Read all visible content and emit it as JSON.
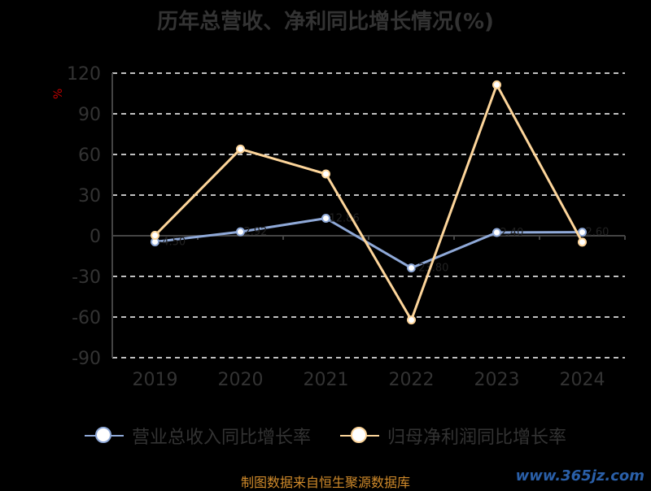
{
  "chart_data": {
    "type": "line",
    "title": "历年总营收、净利同比增长情况(%)",
    "unit_label": "%",
    "categories": [
      "2019",
      "2020",
      "2021",
      "2022",
      "2023",
      "2024"
    ],
    "ylim": [
      -90,
      120
    ],
    "yticks": [
      "120",
      "90",
      "60",
      "30",
      "0",
      "-30",
      "-60",
      "-90"
    ],
    "grid": true,
    "legend_position": "bottom",
    "series": [
      {
        "name": "营业总收入同比增长率",
        "color": "#8fa9d8",
        "values": [
          -4.5,
          2.9,
          12.9,
          -23.8,
          2.4,
          2.6
        ],
        "labels": [
          "-4.50",
          "2.92",
          "12.86",
          "-23.80",
          "2.40",
          "2.60"
        ]
      },
      {
        "name": "归母净利润同比增长率",
        "color": "#fdd59a",
        "values": [
          0.3,
          64.0,
          45.6,
          -62.2,
          111.4,
          -4.7
        ],
        "labels": [
          "",
          "",
          "",
          "",
          "",
          ""
        ]
      }
    ]
  },
  "footer": "制图数据来自恒生聚源数据库",
  "watermark": "www.365jz.com"
}
